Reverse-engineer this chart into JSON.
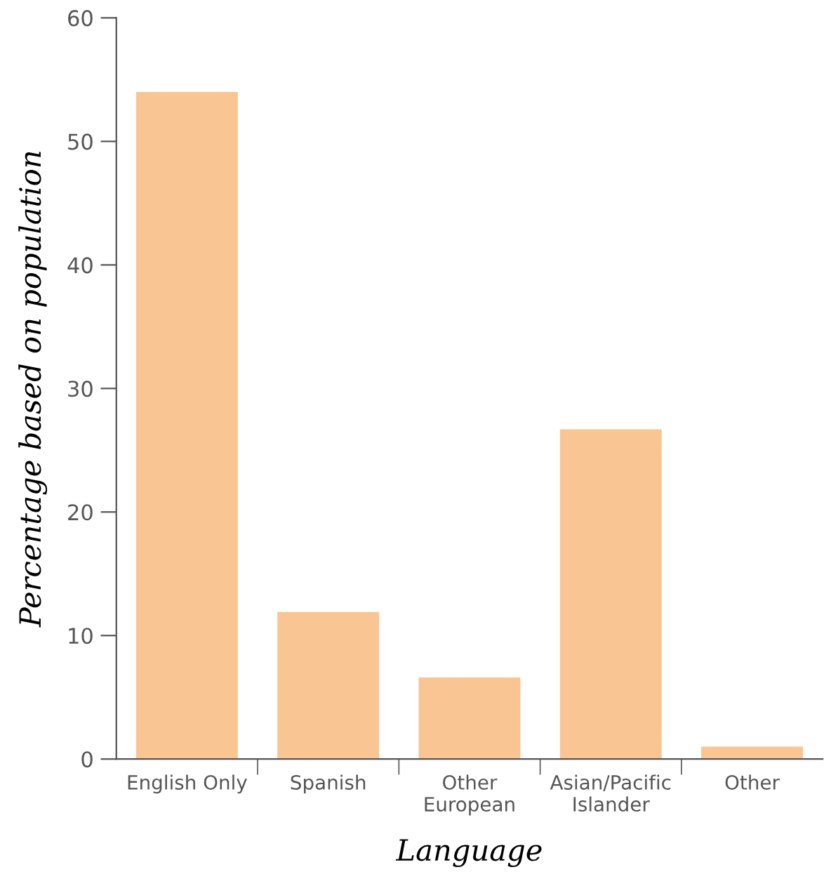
{
  "chart_data": {
    "type": "bar",
    "categories": [
      "English Only",
      "Spanish",
      "Other\nEuropean",
      "Asian/Pacific\nIslander",
      "Other"
    ],
    "values": [
      54,
      11.9,
      6.6,
      26.7,
      1.0
    ],
    "color": "#f9c593",
    "xlabel": "Language",
    "ylabel": "Percentage based on population",
    "ylim": [
      0,
      60
    ],
    "yticks": [
      0,
      10,
      20,
      30,
      40,
      50,
      60
    ],
    "grid": false
  }
}
